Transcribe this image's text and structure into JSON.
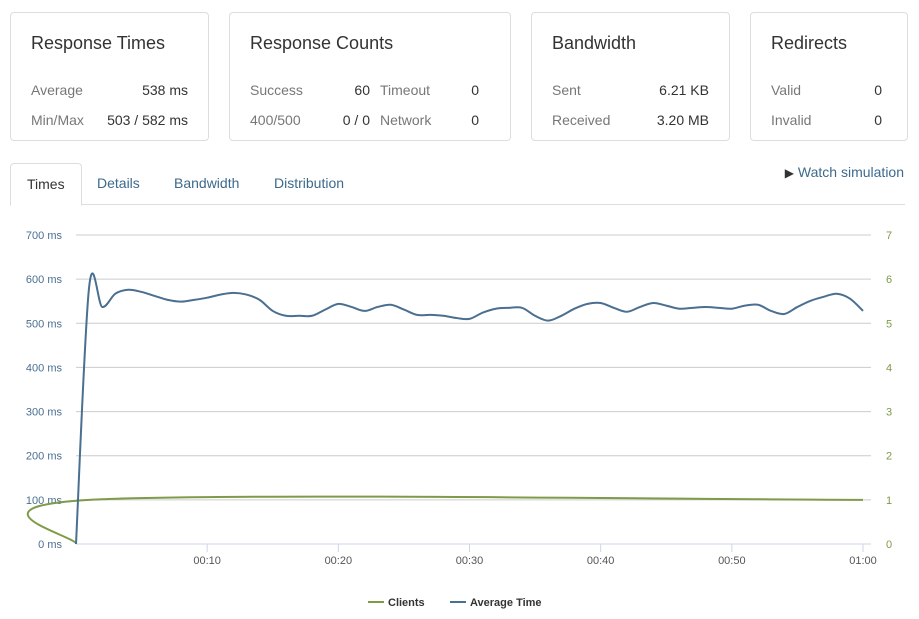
{
  "cards": {
    "response_times": {
      "title": "Response Times",
      "average_label": "Average",
      "average": "538 ms",
      "minmax_label": "Min/Max",
      "minmax": "503 / 582 ms"
    },
    "response_counts": {
      "title": "Response Counts",
      "success_label": "Success",
      "success": "60",
      "timeout_label": "Timeout",
      "timeout": "0",
      "e400_label": "400/500",
      "e400": "0 / 0",
      "network_label": "Network",
      "network": "0"
    },
    "bandwidth": {
      "title": "Bandwidth",
      "sent_label": "Sent",
      "sent": "6.21 KB",
      "received_label": "Received",
      "received": "3.20 MB"
    },
    "redirects": {
      "title": "Redirects",
      "valid_label": "Valid",
      "valid": "0",
      "invalid_label": "Invalid",
      "invalid": "0"
    }
  },
  "tabs": [
    "Times",
    "Details",
    "Bandwidth",
    "Distribution"
  ],
  "watch_label": "Watch simulation",
  "colors": {
    "clients": "#7f9a48",
    "avg": "#4a6f91"
  },
  "chart_data": {
    "type": "line",
    "x_ticks": [
      "00:10",
      "00:20",
      "00:30",
      "00:40",
      "00:50",
      "01:00"
    ],
    "x_tick_values": [
      10,
      20,
      30,
      40,
      50,
      60
    ],
    "xlim": [
      0,
      60
    ],
    "y_left_ticks": [
      "0 ms",
      "100 ms",
      "200 ms",
      "300 ms",
      "400 ms",
      "500 ms",
      "600 ms",
      "700 ms"
    ],
    "ylim_left": [
      0,
      700
    ],
    "y_right_ticks": [
      "0",
      "1",
      "2",
      "3",
      "4",
      "5",
      "6",
      "7"
    ],
    "ylim_right": [
      0,
      7
    ],
    "grid": true,
    "legend_position": "bottom-center",
    "series": [
      {
        "name": "Clients",
        "axis": "right",
        "x": [
          0,
          1,
          60
        ],
        "values": [
          0,
          1,
          1
        ]
      },
      {
        "name": "Average Time",
        "axis": "left",
        "x": [
          0,
          1,
          2,
          3,
          4,
          5,
          6,
          7,
          8,
          9,
          10,
          11,
          12,
          13,
          14,
          15,
          16,
          17,
          18,
          19,
          20,
          21,
          22,
          23,
          24,
          25,
          26,
          27,
          28,
          29,
          30,
          31,
          32,
          33,
          34,
          35,
          36,
          37,
          38,
          39,
          40,
          41,
          42,
          43,
          44,
          45,
          46,
          47,
          48,
          49,
          50,
          51,
          52,
          53,
          54,
          55,
          56,
          57,
          58,
          59,
          60
        ],
        "values": [
          0,
          582,
          537,
          567,
          576,
          571,
          562,
          553,
          549,
          553,
          558,
          565,
          569,
          565,
          553,
          528,
          517,
          517,
          517,
          531,
          544,
          537,
          528,
          537,
          542,
          531,
          519,
          519,
          517,
          512,
          510,
          524,
          533,
          535,
          535,
          517,
          506,
          517,
          533,
          544,
          546,
          535,
          526,
          537,
          546,
          540,
          533,
          535,
          537,
          535,
          533,
          540,
          542,
          528,
          521,
          537,
          551,
          560,
          567,
          556,
          528
        ]
      }
    ]
  }
}
